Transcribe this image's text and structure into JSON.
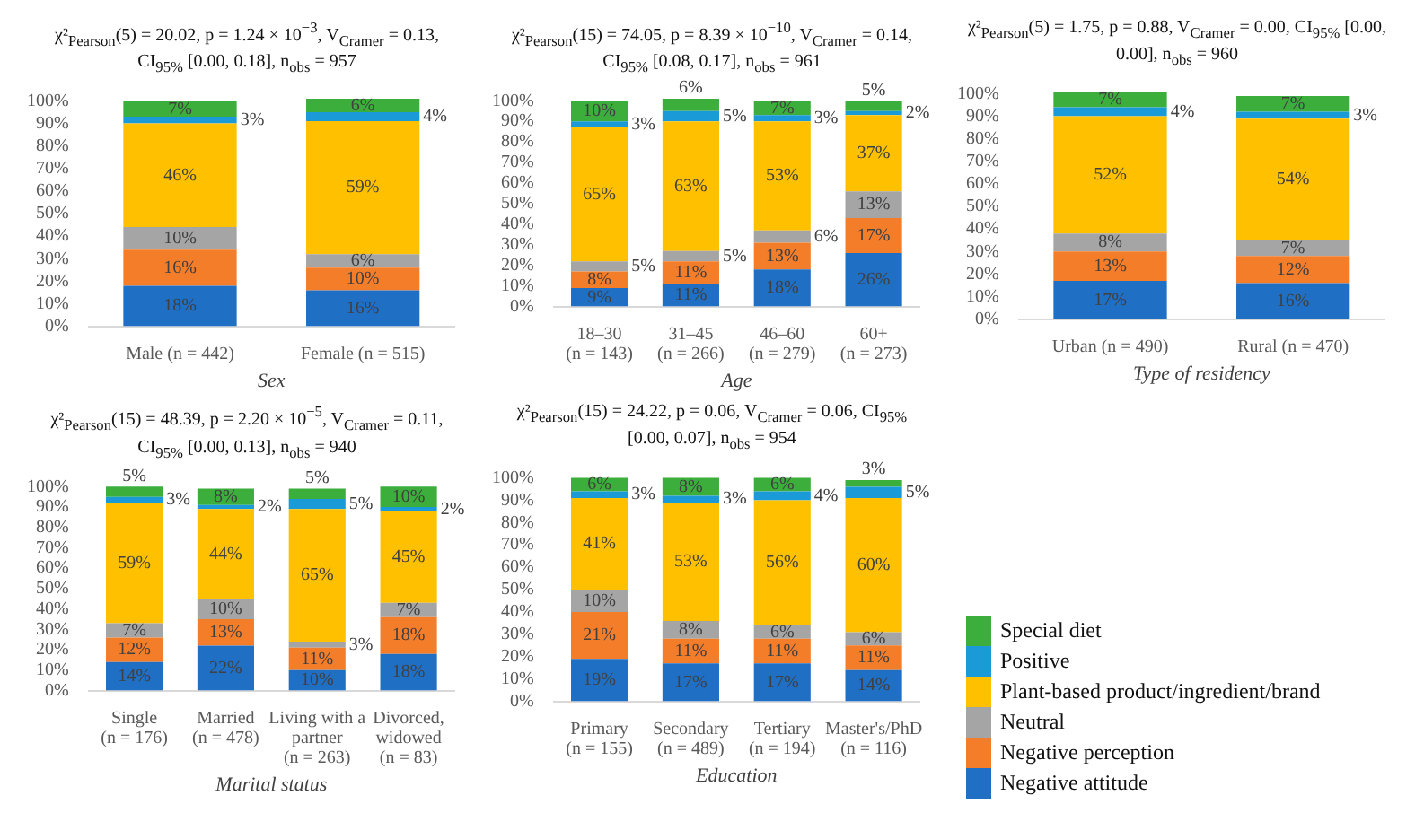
{
  "chart_data": [
    {
      "type": "bar",
      "stacked": true,
      "title": "χ²$_{Pearson}$(5) = 20.02, p = 1.24 × 10$^{−3}$, V$_{Cramer}$ = 0.13, CI$_{95%}$ [0.00, 0.18], n$_{obs}$ = 957",
      "xlabel": "Sex",
      "categories": [
        "Male (n = 442)",
        "Female (n = 515)"
      ],
      "ylim": [
        0,
        101
      ],
      "yticks": [
        {
          "value": 0,
          "label": "0%"
        },
        {
          "value": 10,
          "label": "10%"
        },
        {
          "value": 20,
          "label": "20%"
        },
        {
          "value": 30,
          "label": "30%"
        },
        {
          "value": 40,
          "label": "40%"
        },
        {
          "value": 50,
          "label": "50%"
        },
        {
          "value": 60,
          "label": "60%"
        },
        {
          "value": 70,
          "label": "70%"
        },
        {
          "value": 80,
          "label": "80%"
        },
        {
          "value": 90,
          "label": "90%"
        },
        {
          "value": 100,
          "label": "100%"
        }
      ],
      "series": [
        {
          "color": "#1f6fc5",
          "values": [
            18,
            16
          ],
          "value_labels": [
            "18%",
            "16%"
          ]
        },
        {
          "color": "#f47d2a",
          "values": [
            16,
            10
          ],
          "value_labels": [
            "16%",
            "10%"
          ]
        },
        {
          "color": "#a5a5a5",
          "values": [
            10,
            6
          ],
          "value_labels": [
            "10%",
            "6%"
          ]
        },
        {
          "color": "#ffc000",
          "values": [
            46,
            59
          ],
          "value_labels": [
            "46%",
            "59%"
          ]
        },
        {
          "color": "#1a9ad6",
          "values": [
            3,
            4
          ],
          "value_labels": [
            "3%",
            "4%"
          ]
        },
        {
          "color": "#3cae3c",
          "values": [
            7,
            6
          ],
          "value_labels": [
            "7%",
            "6%"
          ]
        }
      ]
    },
    {
      "type": "bar",
      "stacked": true,
      "title": "χ²$_{Pearson}$(15) = 74.05, p = 8.39 × 10$^{−10}$, V$_{Cramer}$ = 0.14, CI$_{95%}$ [0.08, 0.17], n$_{obs}$ = 961",
      "xlabel": "Age",
      "categories": [
        "18–30\n(n = 143)",
        "31–45\n(n = 266)",
        "46–60\n(n = 279)",
        "60+\n(n = 273)"
      ],
      "ylim": [
        0,
        101
      ],
      "yticks": [
        {
          "value": 0,
          "label": "0%"
        },
        {
          "value": 10,
          "label": "10%"
        },
        {
          "value": 20,
          "label": "20%"
        },
        {
          "value": 30,
          "label": "30%"
        },
        {
          "value": 40,
          "label": "40%"
        },
        {
          "value": 50,
          "label": "50%"
        },
        {
          "value": 60,
          "label": "60%"
        },
        {
          "value": 70,
          "label": "70%"
        },
        {
          "value": 80,
          "label": "80%"
        },
        {
          "value": 90,
          "label": "90%"
        },
        {
          "value": 100,
          "label": "100%"
        }
      ],
      "series": [
        {
          "color": "#1f6fc5",
          "values": [
            9,
            11,
            18,
            26
          ],
          "value_labels": [
            "9%",
            "11%",
            "18%",
            "26%"
          ]
        },
        {
          "color": "#f47d2a",
          "values": [
            8,
            11,
            13,
            17
          ],
          "value_labels": [
            "8%",
            "11%",
            "13%",
            "17%"
          ]
        },
        {
          "color": "#a5a5a5",
          "values": [
            5,
            5,
            6,
            13
          ],
          "value_labels": [
            "5%",
            "5%",
            "6%",
            "13%"
          ]
        },
        {
          "color": "#ffc000",
          "values": [
            65,
            63,
            53,
            37
          ],
          "value_labels": [
            "65%",
            "63%",
            "53%",
            "37%"
          ]
        },
        {
          "color": "#1a9ad6",
          "values": [
            3,
            5,
            3,
            2
          ],
          "value_labels": [
            "3%",
            "5%",
            "3%",
            "2%"
          ]
        },
        {
          "color": "#3cae3c",
          "values": [
            10,
            6,
            7,
            5
          ],
          "value_labels": [
            "10%",
            "6%",
            "7%",
            "5%"
          ]
        }
      ]
    },
    {
      "type": "bar",
      "stacked": true,
      "title": "χ²$_{Pearson}$(5) = 1.75, p = 0.88, V$_{Cramer}$ = 0.00, CI$_{95%}$ [0.00, 0.00], n$_{obs}$ = 960",
      "xlabel": "Type of residency",
      "categories": [
        "Urban (n = 490)",
        "Rural (n = 470)"
      ],
      "ylim": [
        0,
        101
      ],
      "yticks": [
        {
          "value": 0,
          "label": "0%"
        },
        {
          "value": 10,
          "label": "10%"
        },
        {
          "value": 20,
          "label": "20%"
        },
        {
          "value": 30,
          "label": "30%"
        },
        {
          "value": 40,
          "label": "40%"
        },
        {
          "value": 50,
          "label": "50%"
        },
        {
          "value": 60,
          "label": "60%"
        },
        {
          "value": 70,
          "label": "70%"
        },
        {
          "value": 80,
          "label": "80%"
        },
        {
          "value": 90,
          "label": "90%"
        },
        {
          "value": 100,
          "label": "100%"
        }
      ],
      "series": [
        {
          "color": "#1f6fc5",
          "values": [
            17,
            16
          ],
          "value_labels": [
            "17%",
            "16%"
          ]
        },
        {
          "color": "#f47d2a",
          "values": [
            13,
            12
          ],
          "value_labels": [
            "13%",
            "12%"
          ]
        },
        {
          "color": "#a5a5a5",
          "values": [
            8,
            7
          ],
          "value_labels": [
            "8%",
            "7%"
          ]
        },
        {
          "color": "#ffc000",
          "values": [
            52,
            54
          ],
          "value_labels": [
            "52%",
            "54%"
          ]
        },
        {
          "color": "#1a9ad6",
          "values": [
            4,
            3
          ],
          "value_labels": [
            "4%",
            "3%"
          ]
        },
        {
          "color": "#3cae3c",
          "values": [
            7,
            7
          ],
          "value_labels": [
            "7%",
            "7%"
          ]
        }
      ]
    },
    {
      "type": "bar",
      "stacked": true,
      "title": "χ²$_{Pearson}$(15) = 48.39, p = 2.20 × 10$^{−5}$, V$_{Cramer}$ = 0.11, CI$_{95%}$ [0.00, 0.13], n$_{obs}$ = 940",
      "xlabel": "Marital status",
      "categories": [
        "Single\n(n = 176)",
        "Married\n(n = 478)",
        "Living with a\npartner\n(n = 263)",
        "Divorced,\nwidowed\n(n = 83)"
      ],
      "ylim": [
        0,
        101
      ],
      "yticks": [
        {
          "value": 0,
          "label": "0%"
        },
        {
          "value": 10,
          "label": "10%"
        },
        {
          "value": 20,
          "label": "20%"
        },
        {
          "value": 30,
          "label": "30%"
        },
        {
          "value": 40,
          "label": "40%"
        },
        {
          "value": 50,
          "label": "50%"
        },
        {
          "value": 60,
          "label": "60%"
        },
        {
          "value": 70,
          "label": "70%"
        },
        {
          "value": 80,
          "label": "80%"
        },
        {
          "value": 90,
          "label": "90%"
        },
        {
          "value": 100,
          "label": "100%"
        }
      ],
      "series": [
        {
          "color": "#1f6fc5",
          "values": [
            14,
            22,
            10,
            18
          ],
          "value_labels": [
            "14%",
            "22%",
            "10%",
            "18%"
          ]
        },
        {
          "color": "#f47d2a",
          "values": [
            12,
            13,
            11,
            18
          ],
          "value_labels": [
            "12%",
            "13%",
            "11%",
            "18%"
          ]
        },
        {
          "color": "#a5a5a5",
          "values": [
            7,
            10,
            3,
            7
          ],
          "value_labels": [
            "7%",
            "10%",
            "3%",
            "7%"
          ]
        },
        {
          "color": "#ffc000",
          "values": [
            59,
            44,
            65,
            45
          ],
          "value_labels": [
            "59%",
            "44%",
            "65%",
            "45%"
          ]
        },
        {
          "color": "#1a9ad6",
          "values": [
            3,
            2,
            5,
            2
          ],
          "value_labels": [
            "3%",
            "2%",
            "5%",
            "2%"
          ]
        },
        {
          "color": "#3cae3c",
          "values": [
            5,
            8,
            5,
            10
          ],
          "value_labels": [
            "5%",
            "8%",
            "5%",
            "10%"
          ]
        }
      ]
    },
    {
      "type": "bar",
      "stacked": true,
      "legend": "right",
      "title": "χ²$_{Pearson}$(15) = 24.22, p = 0.06, V$_{Cramer}$ = 0.06, CI$_{95%}$ [0.00, 0.07], n$_{obs}$ = 954",
      "xlabel": "Education",
      "categories": [
        "Primary\n(n = 155)",
        "Secondary\n(n = 489)",
        "Tertiary\n(n = 194)",
        "Master's/PhD\n(n = 116)"
      ],
      "ylim": [
        0,
        101
      ],
      "yticks": [
        {
          "value": 0,
          "label": "0%"
        },
        {
          "value": 10,
          "label": "10%"
        },
        {
          "value": 20,
          "label": "20%"
        },
        {
          "value": 30,
          "label": "30%"
        },
        {
          "value": 40,
          "label": "40%"
        },
        {
          "value": 50,
          "label": "50%"
        },
        {
          "value": 60,
          "label": "60%"
        },
        {
          "value": 70,
          "label": "70%"
        },
        {
          "value": 80,
          "label": "80%"
        },
        {
          "value": 90,
          "label": "90%"
        },
        {
          "value": 100,
          "label": "100%"
        }
      ],
      "series": [
        {
          "name": "Negative attitude",
          "color": "#1f6fc5",
          "values": [
            19,
            17,
            17,
            14
          ],
          "value_labels": [
            "19%",
            "17%",
            "17%",
            "14%"
          ]
        },
        {
          "name": "Negative perception",
          "color": "#f47d2a",
          "values": [
            21,
            11,
            11,
            11
          ],
          "value_labels": [
            "21%",
            "11%",
            "11%",
            "11%"
          ]
        },
        {
          "name": "Neutral",
          "color": "#a5a5a5",
          "values": [
            10,
            8,
            6,
            6
          ],
          "value_labels": [
            "10%",
            "8%",
            "6%",
            "6%"
          ]
        },
        {
          "name": "Plant-based product/ingredient/brand",
          "color": "#ffc000",
          "values": [
            41,
            53,
            56,
            60
          ],
          "value_labels": [
            "41%",
            "53%",
            "56%",
            "60%"
          ]
        },
        {
          "name": "Positive",
          "color": "#1a9ad6",
          "values": [
            3,
            3,
            4,
            5
          ],
          "value_labels": [
            "3%",
            "3%",
            "4%",
            "5%"
          ]
        },
        {
          "name": "Special diet",
          "color": "#3cae3c",
          "values": [
            6,
            8,
            6,
            3
          ],
          "value_labels": [
            "6%",
            "8%",
            "6%",
            "3%"
          ]
        }
      ]
    }
  ]
}
